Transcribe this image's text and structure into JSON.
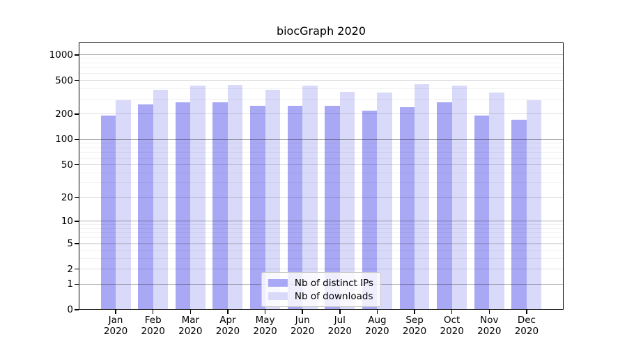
{
  "chart_data": {
    "type": "bar",
    "title": "biocGraph 2020",
    "categories": [
      "Jan",
      "Feb",
      "Mar",
      "Apr",
      "May",
      "Jun",
      "Jul",
      "Aug",
      "Sep",
      "Oct",
      "Nov",
      "Dec"
    ],
    "category_sub_label": "2020",
    "series": [
      {
        "name": "Nb of distinct IPs",
        "color": "#a8a8f4",
        "values": [
          193,
          261,
          278,
          278,
          253,
          253,
          253,
          219,
          242,
          277,
          191,
          173
        ]
      },
      {
        "name": "Nb of downloads",
        "color": "#d9d9f9",
        "values": [
          291,
          389,
          438,
          441,
          389,
          433,
          369,
          358,
          455,
          434,
          358,
          293
        ]
      }
    ],
    "y_scale": "log10(1+v)",
    "y_ticks": [
      0,
      1,
      2,
      5,
      10,
      20,
      50,
      100,
      200,
      500,
      1000
    ],
    "y_minor_ticks": [
      3,
      4,
      6,
      7,
      8,
      9,
      30,
      40,
      60,
      70,
      80,
      90,
      300,
      400,
      600,
      700,
      800,
      900
    ],
    "ylim": [
      0,
      1400
    ],
    "xlabel": "",
    "ylabel": "",
    "grid": true,
    "legend_position": "lower center",
    "colors": {
      "grid_major_pow10": "rgba(0,0,0,0.32)",
      "grid_major_other": "rgba(0,0,0,0.13)",
      "grid_minor": "rgba(0,0,0,0.055)",
      "axis": "#000000",
      "background": "#ffffff"
    }
  }
}
